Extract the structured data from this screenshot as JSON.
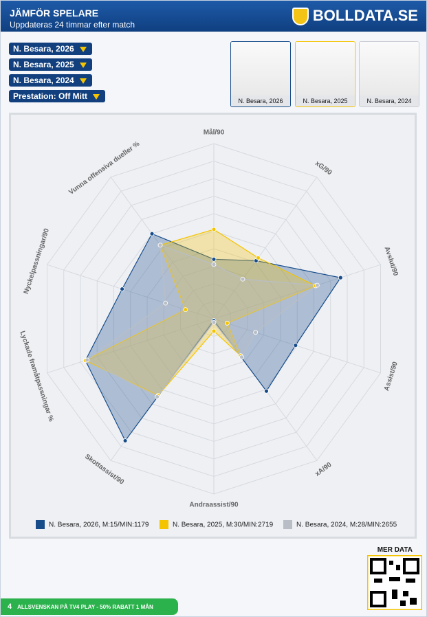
{
  "header": {
    "title": "JÄMFÖR SPELARE",
    "subtitle": "Uppdateras 24 timmar efter match",
    "logo": "BOLLDATA.SE"
  },
  "controls": [
    "N. Besara, 2026",
    "N. Besara, 2025",
    "N. Besara, 2024",
    "Prestation: Off Mitt"
  ],
  "cards": [
    "N. Besara, 2026",
    "N. Besara, 2025",
    "N. Besara, 2024"
  ],
  "chart_data": {
    "type": "radar",
    "categories": [
      "Mål/90",
      "xG/90",
      "Avslut/90",
      "Assist/90",
      "xA/90",
      "Andraassist/90",
      "Skottassist/90",
      "Lyckade framåtpassningar %",
      "Nyckelpassningar/90",
      "Vunna offensiva dueller %"
    ],
    "ylim": [
      0,
      100
    ],
    "yticks": [
      10,
      20,
      30,
      40,
      50,
      60,
      70,
      80,
      90,
      100
    ],
    "grid": true,
    "series": [
      {
        "name": "N. Besara, 2026, M:15/MIN:1179",
        "color": "#174c8a",
        "values": [
          34,
          41,
          76,
          49,
          51,
          1,
          86,
          77,
          55,
          60
        ]
      },
      {
        "name": "N. Besara, 2025, M:30/MIN:2719",
        "color": "#f5c400",
        "values": [
          51,
          43,
          61,
          8,
          26,
          7,
          54,
          77,
          17,
          52
        ]
      },
      {
        "name": "N. Besara, 2024, M:28/MIN:2655",
        "color": "#b9bec6",
        "values": [
          31,
          28,
          62,
          25,
          27,
          2,
          55,
          76,
          29,
          52
        ]
      }
    ]
  },
  "footer": {
    "banner": "ALLSVENSKAN PÅ TV4 PLAY - 50% RABATT 1 MÅN",
    "number": "4",
    "more": "MER DATA"
  }
}
